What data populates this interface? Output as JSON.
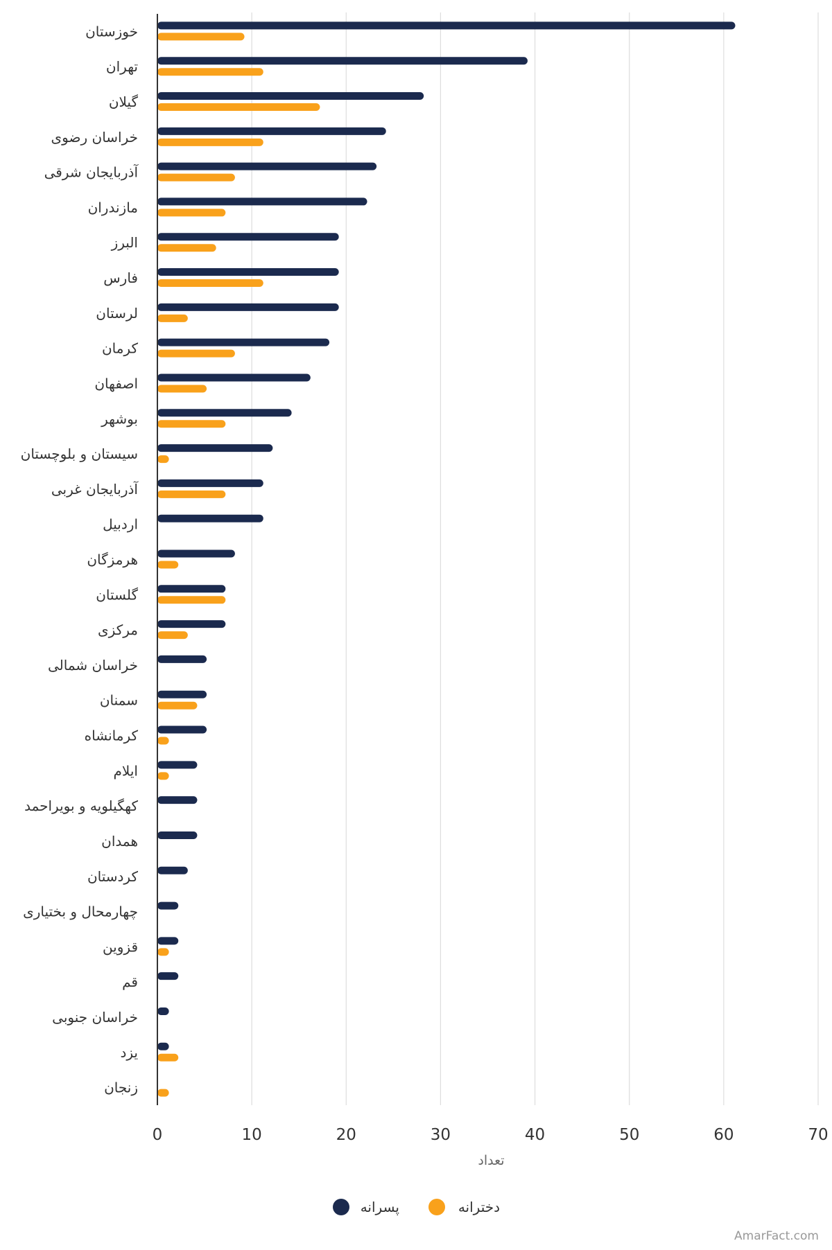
{
  "chart_data": {
    "type": "bar",
    "orientation": "horizontal",
    "categories": [
      "خوزستان",
      "تهران",
      "گیلان",
      "خراسان رضوی",
      "آذربایجان شرقی",
      "مازندران",
      "البرز",
      "فارس",
      "لرستان",
      "کرمان",
      "اصفهان",
      "بوشهر",
      "سیستان و بلوچستان",
      "آذربایجان غربی",
      "اردبیل",
      "هرمزگان",
      "گلستان",
      "مرکزی",
      "خراسان شمالی",
      "سمنان",
      "کرمانشاه",
      "ایلام",
      "کهگیلویه و بویراحمد",
      "همدان",
      "کردستان",
      "چهارمحال و بختیاری",
      "قزوین",
      "قم",
      "خراسان جنوبی",
      "یزد",
      "زنجان"
    ],
    "series": [
      {
        "name": "پسرانه",
        "color": "#1b2a4e",
        "values": [
          61,
          39,
          28,
          24,
          23,
          22,
          19,
          19,
          19,
          18,
          16,
          14,
          12,
          11,
          11,
          8,
          7,
          7,
          5,
          5,
          5,
          4,
          4,
          4,
          3,
          2,
          2,
          2,
          1,
          1,
          0
        ]
      },
      {
        "name": "دخترانه",
        "color": "#f9a11b",
        "values": [
          9,
          11,
          17,
          11,
          8,
          7,
          6,
          11,
          3,
          8,
          5,
          7,
          1,
          7,
          0,
          2,
          7,
          3,
          0,
          4,
          1,
          1,
          0,
          0,
          0,
          0,
          1,
          0,
          0,
          2,
          1
        ]
      }
    ],
    "xlabel": "تعداد",
    "xlim": [
      0,
      70
    ],
    "xticks": [
      0,
      10,
      20,
      30,
      40,
      50,
      60,
      70
    ],
    "grid": true,
    "legend_position": "bottom-center"
  },
  "credit": "AmarFact.com"
}
